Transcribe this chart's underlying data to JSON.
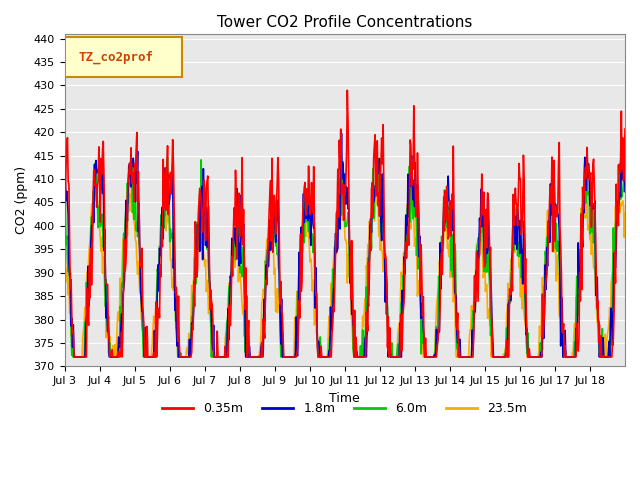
{
  "title": "Tower CO2 Profile Concentrations",
  "xlabel": "Time",
  "ylabel": "CO2 (ppm)",
  "ylim": [
    370,
    441
  ],
  "yticks": [
    370,
    375,
    380,
    385,
    390,
    395,
    400,
    405,
    410,
    415,
    420,
    425,
    430,
    435,
    440
  ],
  "series_labels": [
    "0.35m",
    "1.8m",
    "6.0m",
    "23.5m"
  ],
  "series_colors": [
    "#ff0000",
    "#0000cc",
    "#00cc00",
    "#ffaa00"
  ],
  "series_linewidths": [
    1.2,
    1.2,
    1.2,
    1.2
  ],
  "xtick_labels": [
    "Jul 3",
    "Jul 4",
    "Jul 5",
    "Jul 6",
    "Jul 7",
    "Jul 8",
    "Jul 9",
    "Jul 10",
    "Jul 11",
    "Jul 12",
    "Jul 13",
    "Jul 14",
    "Jul 15",
    "Jul 16",
    "Jul 17",
    "Jul 18"
  ],
  "n_days": 16,
  "base_co2": 383,
  "amplitude": 18,
  "legend_text": "TZ_co2prof",
  "plot_bg_color": "#e8e8e8"
}
